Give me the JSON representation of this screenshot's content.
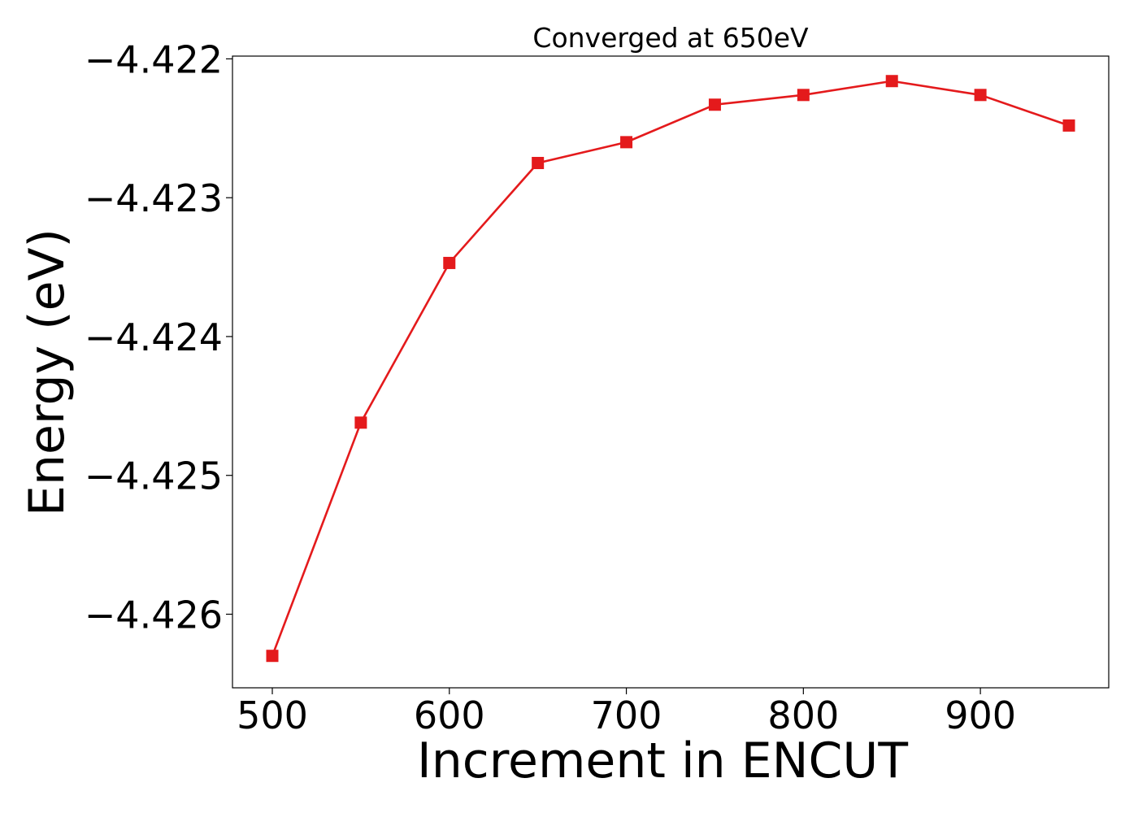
{
  "chart_data": {
    "type": "line",
    "title": "Converged at 650eV",
    "xlabel": "Increment in ENCUT",
    "ylabel": "Energy (eV)",
    "x": [
      500,
      550,
      600,
      650,
      700,
      750,
      800,
      850,
      900,
      950
    ],
    "xlim": [
      477.5,
      972.5
    ],
    "ylim": [
      -4.42653,
      -4.42198
    ],
    "xticks": [
      500,
      600,
      700,
      800,
      900
    ],
    "xtick_labels": [
      "500",
      "600",
      "700",
      "800",
      "900"
    ],
    "yticks": [
      -4.422,
      -4.423,
      -4.424,
      -4.425,
      -4.426
    ],
    "ytick_labels": [
      "−4.422",
      "−4.423",
      "−4.424",
      "−4.425",
      "−4.426"
    ],
    "series": [
      {
        "color": "#e41a1c",
        "marker": "square",
        "values": [
          -4.4263,
          -4.42462,
          -4.42347,
          -4.42275,
          -4.4226,
          -4.42233,
          -4.42226,
          -4.42216,
          -4.42226,
          -4.42248
        ]
      }
    ],
    "grid": false,
    "legend": "none"
  }
}
